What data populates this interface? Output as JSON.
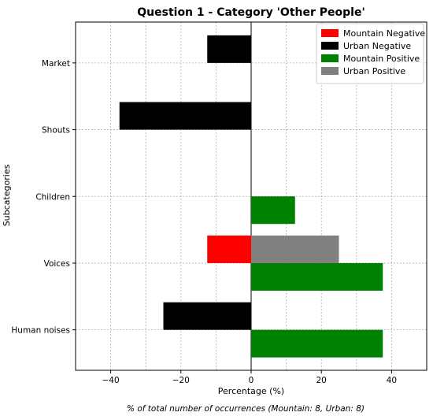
{
  "chart_data": {
    "type": "bar",
    "orientation": "horizontal",
    "title": "Question 1 - Category 'Other People'",
    "xlabel": "Percentage (%)",
    "ylabel": "Subcategories",
    "footnote": "% of total number of occurrences (Mountain: 8, Urban: 8)",
    "xlim": [
      -50,
      50
    ],
    "xticks": [
      -40,
      -20,
      0,
      20,
      40
    ],
    "tick_labels_x": [
      "−40",
      "−20",
      "0",
      "20",
      "40"
    ],
    "categories": [
      "Market",
      "Shouts",
      "Children",
      "Voices",
      "Human noises"
    ],
    "grid": true,
    "legend_position": "top-right",
    "series": [
      {
        "name": "Mountain Negative",
        "color": "#ff0000",
        "values": [
          0,
          0,
          0,
          -12.5,
          0
        ]
      },
      {
        "name": "Urban Negative",
        "color": "#000000",
        "values": [
          -12.5,
          -37.5,
          0,
          0,
          -25
        ]
      },
      {
        "name": "Mountain Positive",
        "color": "#008000",
        "values": [
          0,
          0,
          12.5,
          37.5,
          37.5
        ]
      },
      {
        "name": "Urban Positive",
        "color": "#808080",
        "values": [
          0,
          0,
          0,
          25,
          0
        ]
      }
    ]
  }
}
